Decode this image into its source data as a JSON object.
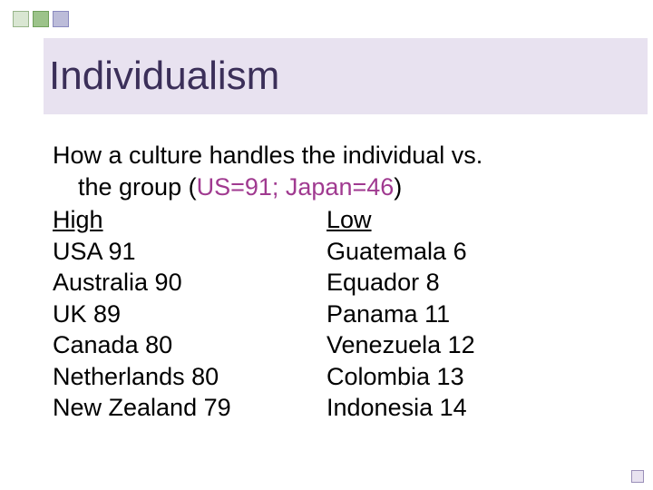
{
  "decoration": {
    "squares": [
      {
        "bg": "#d9e6d2",
        "border": "#98b58a"
      },
      {
        "bg": "#9cc38a",
        "border": "#6fa05a"
      },
      {
        "bg": "#bcbcd9",
        "border": "#8a8abf"
      }
    ],
    "corner": {
      "bg": "#e8e2f0",
      "border": "#9a8fb8"
    }
  },
  "title": {
    "text": "Individualism",
    "bar_bg": "#e8e2f0",
    "text_color": "#3b2f59"
  },
  "intro": {
    "line1": "How a culture handles the individual vs.",
    "line2_prefix": "the group (",
    "accent_text": "US=91;  Japan=46",
    "line2_suffix": ")",
    "accent_color": "#a03a90"
  },
  "columns": {
    "left": {
      "header": "High",
      "items": [
        {
          "country": "USA",
          "value": 91,
          "sep": " "
        },
        {
          "country": "Australia",
          "value": 90,
          "sep": "  "
        },
        {
          "country": "UK",
          "value": 89,
          "sep": "  "
        },
        {
          "country": "Canada",
          "value": 80,
          "sep": "  "
        },
        {
          "country": "Netherlands",
          "value": 80,
          "sep": " "
        },
        {
          "country": "New Zealand",
          "value": 79,
          "sep": " "
        }
      ]
    },
    "right": {
      "header": "Low",
      "items": [
        {
          "country": "Guatemala",
          "value": 6,
          "sep": "  "
        },
        {
          "country": "Equador",
          "value": 8,
          "sep": "  "
        },
        {
          "country": "Panama",
          "value": 11,
          "sep": "  "
        },
        {
          "country": "Venezuela",
          "value": 12,
          "sep": "  "
        },
        {
          "country": "Colombia",
          "value": 13,
          "sep": " "
        },
        {
          "country": "Indonesia",
          "value": 14,
          "sep": " "
        }
      ]
    }
  }
}
